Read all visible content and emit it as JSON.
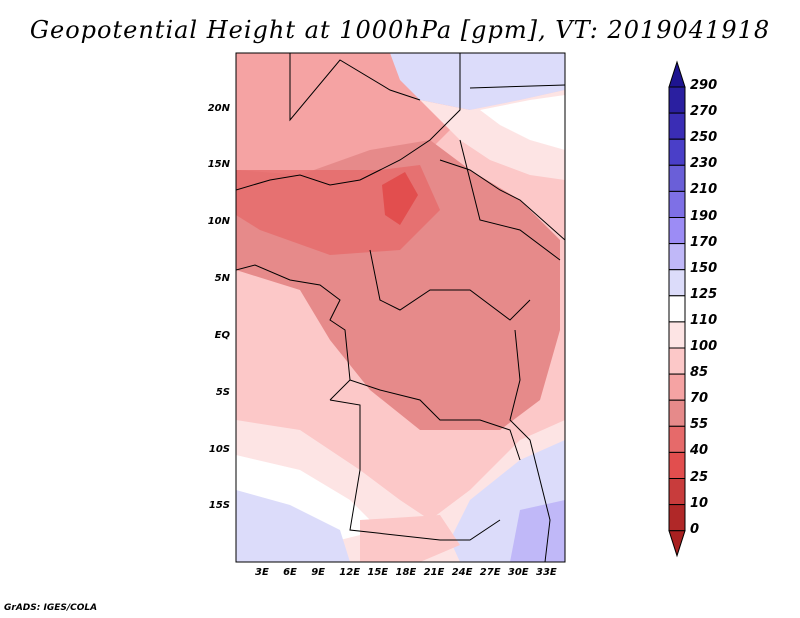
{
  "title": "Geopotential Height at 1000hPa [gpm], VT: 2019041918",
  "credit": "GrADS: IGES/COLA",
  "map": {
    "lat_labels": [
      "20N",
      "15N",
      "10N",
      "5N",
      "EQ",
      "5S",
      "10S",
      "15S"
    ],
    "lon_labels": [
      "3E",
      "6E",
      "9E",
      "12E",
      "15E",
      "18E",
      "21E",
      "24E",
      "27E",
      "30E",
      "33E"
    ]
  },
  "colorbar": {
    "labels": [
      "290",
      "270",
      "250",
      "230",
      "210",
      "190",
      "170",
      "150",
      "125",
      "110",
      "100",
      "85",
      "70",
      "55",
      "40",
      "25",
      "10",
      "0"
    ],
    "colors": [
      "#1e1490",
      "#2a1fa0",
      "#3a2db5",
      "#4a3fc8",
      "#6a5fd8",
      "#7e70e6",
      "#9c8cf5",
      "#c0b8f8",
      "#dcdcfa",
      "#ffffff",
      "#fde4e4",
      "#fcc8c8",
      "#f5a3a3",
      "#e68a8a",
      "#e66a6a",
      "#e24e4e",
      "#c83c3c",
      "#b02828",
      "#a82020"
    ]
  }
}
